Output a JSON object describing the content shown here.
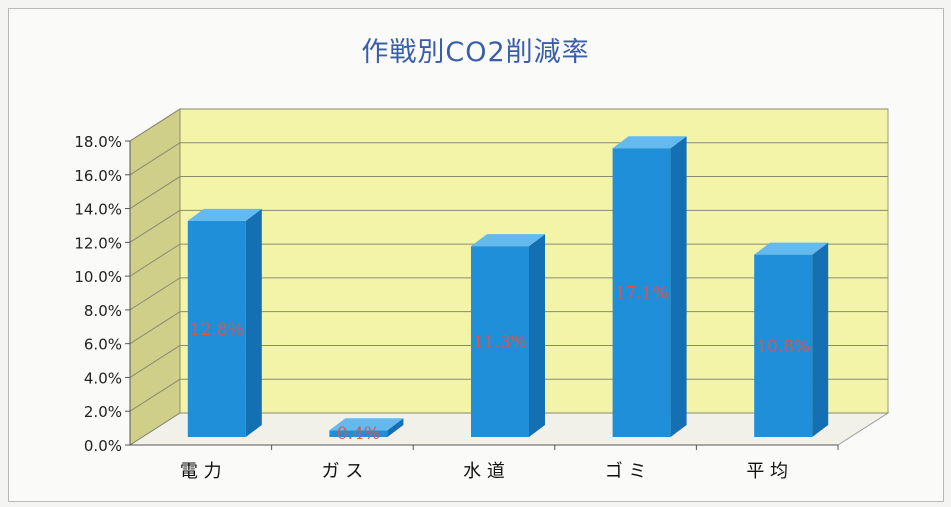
{
  "chart_data": {
    "type": "bar",
    "title": "作戦別CO2削減率",
    "categories": [
      "電 力",
      "ガ ス",
      "水 道",
      "ゴ ミ",
      "平 均"
    ],
    "values": [
      12.8,
      0.4,
      11.3,
      17.1,
      10.8
    ],
    "data_labels": [
      "12.8%",
      "0.4%",
      "11.3%",
      "17.1%",
      "10.8%"
    ],
    "y_ticks": [
      "0.0%",
      "2.0%",
      "4.0%",
      "6.0%",
      "8.0%",
      "10.0%",
      "12.0%",
      "14.0%",
      "16.0%",
      "18.0%"
    ],
    "ylim": [
      0,
      18
    ],
    "grid": true,
    "style": "3d-column",
    "colors": {
      "bar_front": "#1e8fd8",
      "bar_top": "#63baee",
      "bar_side": "#1470b2",
      "back_wall": "#f4f4a8",
      "side_wall": "#cfcf8a",
      "floor": "#f1f1ea",
      "data_label": "#e0524c",
      "title": "#3a5fa8"
    }
  }
}
